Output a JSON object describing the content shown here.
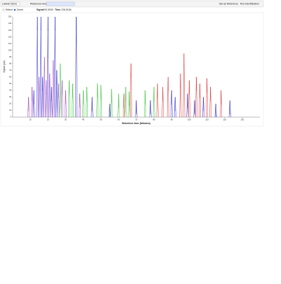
{
  "toolbar": {
    "labels": "Labels:",
    "labels_value": "Name",
    "reference_level": "Reference level",
    "set_reference": "Set as Reference",
    "run_identification": "Run identification",
    "select": "Select",
    "zoom": "Zoom",
    "signal": "Signal",
    "signal_value": "90.0000",
    "time": "Time",
    "time_value": "126.5154"
  },
  "chart_data": {
    "type": "peaks",
    "y_label": "Signal (pA)",
    "x_label": "Retention time (Minutes)",
    "xlim": [
      0,
      140
    ],
    "xticks": [
      10,
      20,
      30,
      40,
      50,
      60,
      70,
      80,
      90,
      100,
      110,
      120,
      130
    ],
    "ylim": [
      0,
      150
    ],
    "yticks": [
      0,
      10,
      20,
      30,
      40,
      50,
      60,
      70,
      80,
      90,
      100,
      110,
      120,
      130,
      140,
      150
    ],
    "grid": false,
    "series": [
      {
        "color": "#2a2ad0",
        "x": [
          12,
          14,
          16,
          17,
          20,
          22,
          24,
          25,
          36,
          45,
          55,
          70,
          78,
          90,
          92,
          99,
          103,
          108,
          115,
          123
        ],
        "values": [
          40,
          150,
          150,
          60,
          150,
          45,
          150,
          70,
          150,
          30,
          20,
          25,
          25,
          40,
          30,
          35,
          25,
          30,
          20,
          25
        ]
      },
      {
        "color": "#a040c0",
        "x": [
          9,
          11,
          15,
          18,
          19,
          21,
          23,
          26,
          28,
          30,
          38
        ],
        "values": [
          30,
          45,
          60,
          90,
          55,
          65,
          85,
          50,
          55,
          40,
          35
        ]
      },
      {
        "color": "#30c030",
        "x": [
          27,
          32,
          34,
          40,
          42,
          48,
          50,
          56,
          60,
          64,
          66,
          75,
          80
        ],
        "values": [
          80,
          55,
          50,
          40,
          45,
          50,
          48,
          42,
          35,
          45,
          38,
          40,
          45
        ]
      },
      {
        "color": "#e03030",
        "x": [
          63,
          67,
          82,
          85,
          88,
          95,
          97,
          100,
          104,
          106,
          110,
          112,
          118
        ],
        "values": [
          35,
          80,
          50,
          45,
          60,
          65,
          95,
          55,
          60,
          50,
          58,
          45,
          40
        ]
      }
    ]
  }
}
